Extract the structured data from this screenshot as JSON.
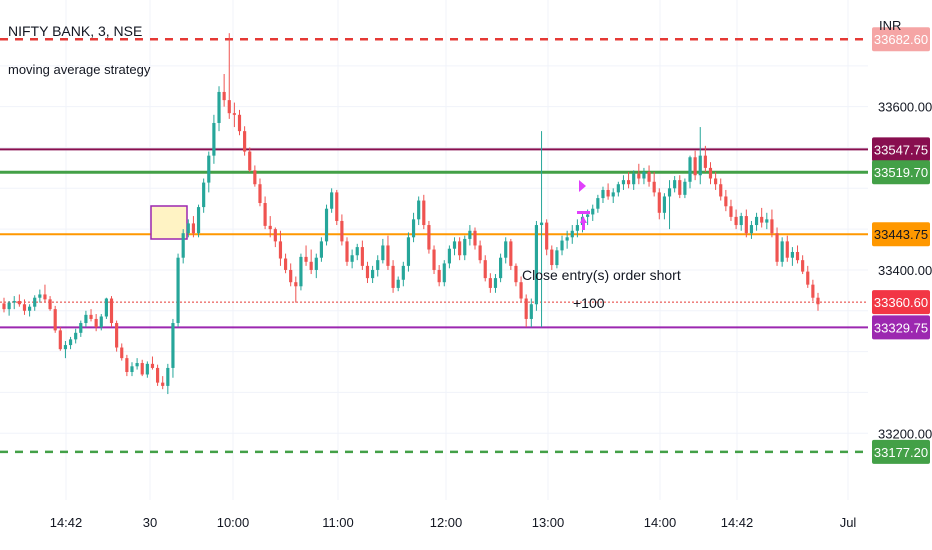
{
  "header": {
    "symbol": "NIFTY BANK, 3, NSE",
    "strategy": "moving average strategy",
    "currency": "INR"
  },
  "chart_data": {
    "type": "candlestick",
    "y_range": [
      33155,
      33700
    ],
    "x_ticks": [
      "14:42",
      "30",
      "10:00",
      "11:00",
      "12:00",
      "13:00",
      "14:00",
      "14:42",
      "Jul"
    ],
    "y_ticks": [
      33600.0,
      33400.0,
      33200.0
    ],
    "levels": [
      {
        "name": "upper-dashed",
        "value": 33682.6,
        "color": "#e53935",
        "style": "dashed"
      },
      {
        "name": "maroon",
        "value": 33547.75,
        "color": "#880e4f",
        "style": "solid"
      },
      {
        "name": "green",
        "value": 33519.7,
        "color": "#43a047",
        "style": "solid"
      },
      {
        "name": "orange",
        "value": 33443.75,
        "color": "#ff9800",
        "style": "solid"
      },
      {
        "name": "last-price",
        "value": 33360.6,
        "color": "#e53935",
        "style": "dotted"
      },
      {
        "name": "purple",
        "value": 33329.75,
        "color": "#9c27b0",
        "style": "solid"
      },
      {
        "name": "lower-dashed",
        "value": 33177.2,
        "color": "#43a047",
        "style": "dashed"
      }
    ],
    "price_labels": [
      {
        "text": "33682.60",
        "color": "#f5a5a5",
        "value": 33682.6
      },
      {
        "text": "33547.75",
        "color": "#880e4f",
        "value": 33547.75
      },
      {
        "text": "33519.70",
        "color": "#43a047",
        "value": 33519.7
      },
      {
        "text": "33443.75",
        "color": "#ff9800",
        "value": 33443.75,
        "textColor": "#131722"
      },
      {
        "text": "33360.60",
        "color": "#f23645",
        "value": 33360.6
      },
      {
        "text": "33329.75",
        "color": "#9c27b0",
        "value": 33329.75
      },
      {
        "text": "33177.20",
        "color": "#43a047",
        "value": 33177.2
      }
    ],
    "annotations": {
      "close_label": "Close entry(s) order short",
      "profit_label": "+100"
    },
    "up_color": "#26a69a",
    "down_color": "#ef5350",
    "candles": [
      [
        33359,
        33366,
        33348,
        33352
      ],
      [
        33352,
        33362,
        33344,
        33360
      ],
      [
        33360,
        33368,
        33352,
        33362
      ],
      [
        33362,
        33370,
        33355,
        33358
      ],
      [
        33358,
        33364,
        33345,
        33350
      ],
      [
        33350,
        33358,
        33343,
        33355
      ],
      [
        33355,
        33369,
        33350,
        33366
      ],
      [
        33366,
        33376,
        33360,
        33370
      ],
      [
        33370,
        33382,
        33360,
        33364
      ],
      [
        33364,
        33368,
        33350,
        33352
      ],
      [
        33352,
        33356,
        33323,
        33326
      ],
      [
        33326,
        33330,
        33301,
        33303
      ],
      [
        33303,
        33313,
        33292,
        33308
      ],
      [
        33308,
        33318,
        33303,
        33315
      ],
      [
        33315,
        33328,
        33310,
        33323
      ],
      [
        33323,
        33338,
        33318,
        33335
      ],
      [
        33335,
        33350,
        33330,
        33345
      ],
      [
        33345,
        33352,
        33337,
        33340
      ],
      [
        33340,
        33346,
        33325,
        33330
      ],
      [
        33330,
        33346,
        33326,
        33343
      ],
      [
        33343,
        33366,
        33340,
        33365
      ],
      [
        33365,
        33368,
        33330,
        33335
      ],
      [
        33335,
        33338,
        33300,
        33305
      ],
      [
        33305,
        33310,
        33289,
        33292
      ],
      [
        33292,
        33296,
        33270,
        33275
      ],
      [
        33275,
        33287,
        33270,
        33282
      ],
      [
        33282,
        33292,
        33278,
        33286
      ],
      [
        33286,
        33290,
        33270,
        33272
      ],
      [
        33272,
        33288,
        33268,
        33285
      ],
      [
        33285,
        33294,
        33278,
        33280
      ],
      [
        33280,
        33284,
        33258,
        33262
      ],
      [
        33262,
        33270,
        33254,
        33258
      ],
      [
        33258,
        33285,
        33248,
        33280
      ],
      [
        33280,
        33340,
        33268,
        33335
      ],
      [
        33335,
        33420,
        33330,
        33415
      ],
      [
        33415,
        33450,
        33408,
        33445
      ],
      [
        33445,
        33462,
        33440,
        33457
      ],
      [
        33457,
        33466,
        33440,
        33445
      ],
      [
        33445,
        33480,
        33440,
        33477
      ],
      [
        33477,
        33512,
        33470,
        33507
      ],
      [
        33507,
        33545,
        33495,
        33540
      ],
      [
        33540,
        33590,
        33530,
        33580
      ],
      [
        33580,
        33625,
        33570,
        33618
      ],
      [
        33618,
        33640,
        33600,
        33608
      ],
      [
        33608,
        33690,
        33585,
        33592
      ],
      [
        33592,
        33605,
        33575,
        33590
      ],
      [
        33590,
        33596,
        33565,
        33570
      ],
      [
        33570,
        33576,
        33540,
        33545
      ],
      [
        33545,
        33550,
        33520,
        33522
      ],
      [
        33522,
        33528,
        33502,
        33505
      ],
      [
        33505,
        33512,
        33478,
        33482
      ],
      [
        33482,
        33490,
        33450,
        33454
      ],
      [
        33454,
        33466,
        33440,
        33450
      ],
      [
        33450,
        33452,
        33428,
        33435
      ],
      [
        33435,
        33448,
        33405,
        33414
      ],
      [
        33414,
        33420,
        33396,
        33400
      ],
      [
        33400,
        33408,
        33380,
        33385
      ],
      [
        33385,
        33392,
        33360,
        33380
      ],
      [
        33380,
        33420,
        33375,
        33416
      ],
      [
        33416,
        33430,
        33405,
        33410
      ],
      [
        33410,
        33425,
        33395,
        33400
      ],
      [
        33400,
        33420,
        33390,
        33415
      ],
      [
        33415,
        33440,
        33410,
        33435
      ],
      [
        33435,
        33480,
        33430,
        33475
      ],
      [
        33475,
        33500,
        33470,
        33495
      ],
      [
        33495,
        33498,
        33455,
        33460
      ],
      [
        33460,
        33468,
        33430,
        33435
      ],
      [
        33435,
        33440,
        33405,
        33410
      ],
      [
        33410,
        33425,
        33402,
        33418
      ],
      [
        33418,
        33432,
        33412,
        33428
      ],
      [
        33428,
        33436,
        33400,
        33405
      ],
      [
        33405,
        33410,
        33384,
        33390
      ],
      [
        33390,
        33405,
        33384,
        33400
      ],
      [
        33400,
        33418,
        33392,
        33412
      ],
      [
        33412,
        33438,
        33408,
        33430
      ],
      [
        33430,
        33442,
        33400,
        33405
      ],
      [
        33405,
        33412,
        33372,
        33378
      ],
      [
        33378,
        33392,
        33374,
        33388
      ],
      [
        33388,
        33410,
        33380,
        33405
      ],
      [
        33405,
        33446,
        33398,
        33440
      ],
      [
        33440,
        33470,
        33434,
        33462
      ],
      [
        33462,
        33490,
        33455,
        33485
      ],
      [
        33485,
        33492,
        33450,
        33455
      ],
      [
        33455,
        33460,
        33420,
        33425
      ],
      [
        33425,
        33430,
        33395,
        33400
      ],
      [
        33400,
        33406,
        33380,
        33385
      ],
      [
        33385,
        33412,
        33380,
        33408
      ],
      [
        33408,
        33430,
        33402,
        33426
      ],
      [
        33426,
        33440,
        33418,
        33435
      ],
      [
        33435,
        33440,
        33412,
        33418
      ],
      [
        33418,
        33442,
        33412,
        33438
      ],
      [
        33438,
        33455,
        33430,
        33448
      ],
      [
        33448,
        33452,
        33425,
        33430
      ],
      [
        33430,
        33436,
        33408,
        33412
      ],
      [
        33412,
        33418,
        33386,
        33390
      ],
      [
        33390,
        33396,
        33372,
        33378
      ],
      [
        33378,
        33395,
        33372,
        33390
      ],
      [
        33390,
        33420,
        33385,
        33415
      ],
      [
        33415,
        33440,
        33408,
        33435
      ],
      [
        33435,
        33438,
        33400,
        33405
      ],
      [
        33405,
        33408,
        33380,
        33385
      ],
      [
        33385,
        33392,
        33360,
        33365
      ],
      [
        33365,
        33370,
        33330,
        33340
      ],
      [
        33340,
        33365,
        33330,
        33358
      ],
      [
        33358,
        33460,
        33350,
        33455
      ],
      [
        33455,
        33570,
        33330,
        33458
      ],
      [
        33458,
        33462,
        33418,
        33425
      ],
      [
        33425,
        33430,
        33400,
        33406
      ],
      [
        33406,
        33428,
        33402,
        33424
      ],
      [
        33424,
        33442,
        33418,
        33436
      ],
      [
        33436,
        33448,
        33426,
        33440
      ],
      [
        33440,
        33455,
        33432,
        33448
      ],
      [
        33448,
        33462,
        33440,
        33455
      ],
      [
        33455,
        33470,
        33446,
        33465
      ],
      [
        33465,
        33474,
        33455,
        33468
      ],
      [
        33468,
        33480,
        33460,
        33475
      ],
      [
        33475,
        33492,
        33470,
        33488
      ],
      [
        33488,
        33502,
        33482,
        33498
      ],
      [
        33498,
        33506,
        33486,
        33490
      ],
      [
        33490,
        33500,
        33482,
        33495
      ],
      [
        33495,
        33508,
        33490,
        33505
      ],
      [
        33505,
        33516,
        33498,
        33510
      ],
      [
        33510,
        33520,
        33500,
        33505
      ],
      [
        33505,
        33522,
        33498,
        33518
      ],
      [
        33518,
        33530,
        33505,
        33512
      ],
      [
        33512,
        33525,
        33505,
        33520
      ],
      [
        33520,
        33528,
        33502,
        33508
      ],
      [
        33508,
        33520,
        33490,
        33495
      ],
      [
        33495,
        33500,
        33462,
        33470
      ],
      [
        33470,
        33494,
        33462,
        33490
      ],
      [
        33490,
        33510,
        33450,
        33500
      ],
      [
        33500,
        33515,
        33495,
        33510
      ],
      [
        33510,
        33516,
        33488,
        33492
      ],
      [
        33492,
        33512,
        33488,
        33508
      ],
      [
        33508,
        33540,
        33500,
        33538
      ],
      [
        33538,
        33546,
        33510,
        33516
      ],
      [
        33516,
        33575,
        33505,
        33540
      ],
      [
        33540,
        33552,
        33520,
        33525
      ],
      [
        33525,
        33532,
        33505,
        33512
      ],
      [
        33512,
        33520,
        33498,
        33505
      ],
      [
        33505,
        33512,
        33485,
        33490
      ],
      [
        33490,
        33498,
        33472,
        33478
      ],
      [
        33478,
        33486,
        33460,
        33465
      ],
      [
        33465,
        33474,
        33450,
        33455
      ],
      [
        33455,
        33470,
        33448,
        33466
      ],
      [
        33466,
        33474,
        33440,
        33445
      ],
      [
        33445,
        33460,
        33438,
        33455
      ],
      [
        33455,
        33470,
        33448,
        33465
      ],
      [
        33465,
        33476,
        33452,
        33458
      ],
      [
        33458,
        33470,
        33450,
        33462
      ],
      [
        33462,
        33474,
        33440,
        33445
      ],
      [
        33445,
        33452,
        33405,
        33410
      ],
      [
        33410,
        33440,
        33404,
        33435
      ],
      [
        33435,
        33442,
        33410,
        33415
      ],
      [
        33415,
        33428,
        33405,
        33422
      ],
      [
        33422,
        33430,
        33408,
        33412
      ],
      [
        33412,
        33418,
        33395,
        33398
      ],
      [
        33398,
        33405,
        33378,
        33382
      ],
      [
        33382,
        33388,
        33362,
        33366
      ],
      [
        33366,
        33372,
        33350,
        33358
      ]
    ]
  }
}
